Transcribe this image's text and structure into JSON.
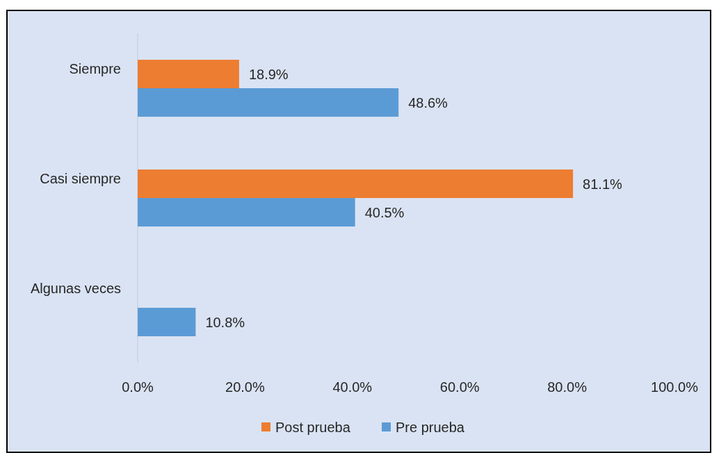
{
  "chart_data": {
    "type": "bar",
    "orientation": "horizontal",
    "categories": [
      "Siempre",
      "Casi siempre",
      "Algunas veces"
    ],
    "series": [
      {
        "name": "Post prueba",
        "color": "#ed7d31",
        "values": [
          18.9,
          81.1,
          null
        ],
        "value_labels": [
          "18.9%",
          "81.1%",
          null
        ]
      },
      {
        "name": "Pre prueba",
        "color": "#5b9bd5",
        "values": [
          48.6,
          40.5,
          10.8
        ],
        "value_labels": [
          "48.6%",
          "40.5%",
          "10.8%"
        ]
      }
    ],
    "xlim": [
      0,
      100
    ],
    "xticks": [
      {
        "value": 0,
        "label": "0.0%"
      },
      {
        "value": 20,
        "label": "20.0%"
      },
      {
        "value": 40,
        "label": "40.0%"
      },
      {
        "value": 60,
        "label": "60.0%"
      },
      {
        "value": 80,
        "label": "80.0%"
      },
      {
        "value": 100,
        "label": "100.0%"
      }
    ],
    "grid": false,
    "legend": "bottom"
  }
}
